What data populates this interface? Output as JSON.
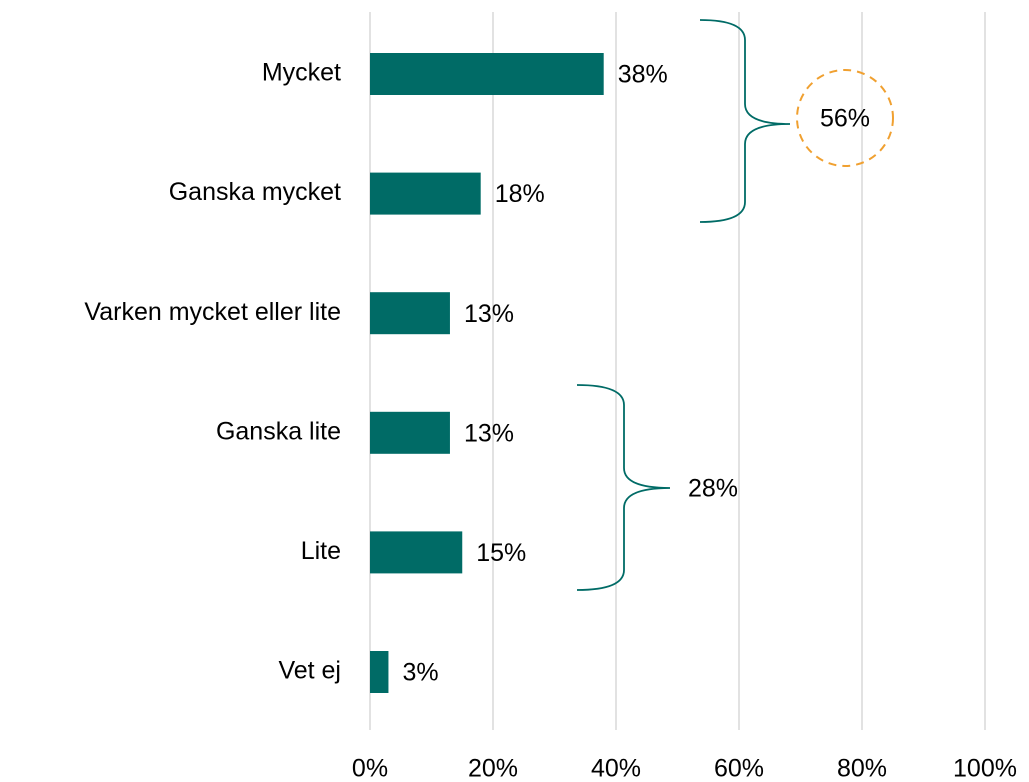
{
  "chart_data": {
    "type": "barh",
    "categories": [
      "Mycket",
      "Ganska mycket",
      "Varken mycket eller lite",
      "Ganska lite",
      "Lite",
      "Vet ej"
    ],
    "values": [
      38,
      18,
      13,
      13,
      15,
      3
    ],
    "value_labels": [
      "38%",
      "18%",
      "13%",
      "13%",
      "15%",
      "3%"
    ],
    "color": "#006b66",
    "xlim": [
      0,
      100
    ],
    "xticks": [
      {
        "value": 0,
        "label": "0%"
      },
      {
        "value": 20,
        "label": "20%"
      },
      {
        "value": 40,
        "label": "40%"
      },
      {
        "value": 60,
        "label": "60%"
      },
      {
        "value": 80,
        "label": "80%"
      },
      {
        "value": 100,
        "label": "100%"
      }
    ],
    "grid": true,
    "annotations": [
      "56%",
      "28%"
    ]
  }
}
